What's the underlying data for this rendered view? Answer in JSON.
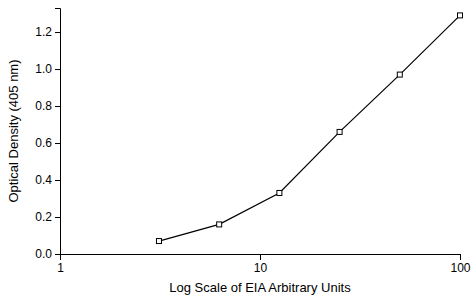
{
  "chart_data": {
    "type": "line",
    "x_label": "Log Scale of EIA Arbitrary Units",
    "y_label": "Optical Density (405 nm)",
    "x": [
      3.125,
      6.25,
      12.5,
      25,
      50,
      100
    ],
    "values": [
      0.07,
      0.16,
      0.33,
      0.66,
      0.97,
      1.29
    ],
    "color": "#000000",
    "marker": "square",
    "log": "x",
    "xlim": [
      1,
      100
    ],
    "xticks": [
      1,
      10,
      100
    ],
    "ylim": [
      0,
      1.33
    ],
    "yticks": [
      {
        "value": 0,
        "label": "0.0"
      },
      0.2,
      0.4,
      0.6,
      0.8,
      {
        "value": 1,
        "label": "1.0"
      },
      1.2
    ],
    "grid": false
  }
}
